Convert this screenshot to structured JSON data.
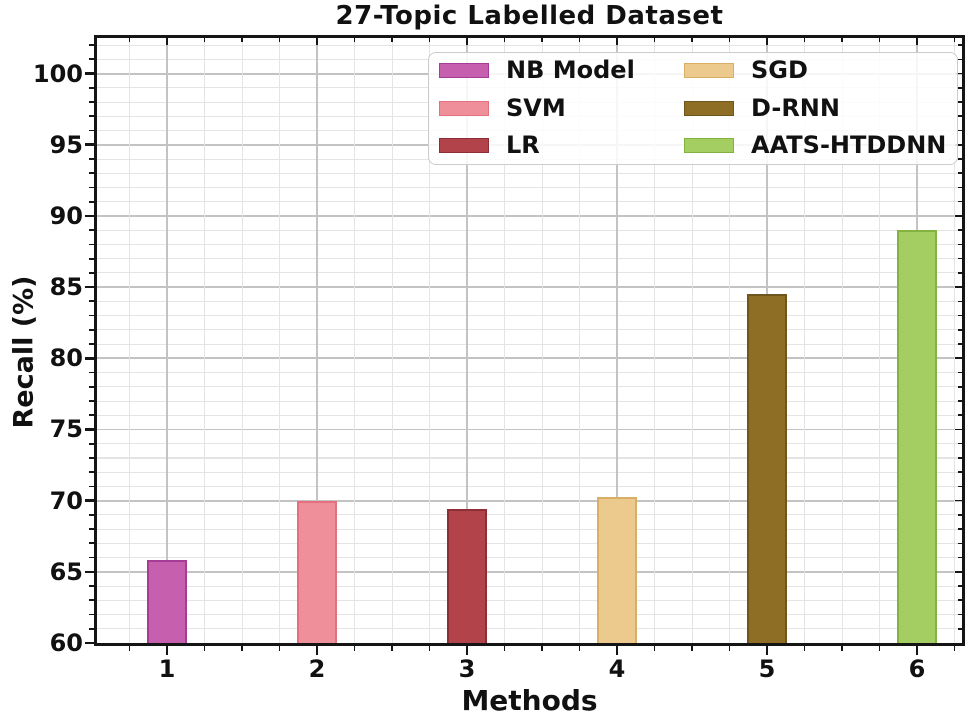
{
  "figure": {
    "title": "27-Topic Labelled Dataset",
    "xlabel": "Methods",
    "ylabel": "Recall (%)"
  },
  "chart_data": {
    "type": "bar",
    "title": "27-Topic Labelled Dataset",
    "xlabel": "Methods",
    "ylabel": "Recall (%)",
    "categories": [
      "1",
      "2",
      "3",
      "4",
      "5",
      "6"
    ],
    "series": [
      {
        "name": "NB Model",
        "x": 1,
        "value": 65.8,
        "color": "#c55fae",
        "edge": "#a53d97"
      },
      {
        "name": "SVM",
        "x": 2,
        "value": 70.0,
        "color": "#ee8f99",
        "edge": "#e2707e"
      },
      {
        "name": "LR",
        "x": 3,
        "value": 69.4,
        "color": "#b2434b",
        "edge": "#8e2f38"
      },
      {
        "name": "SGD",
        "x": 4,
        "value": 70.25,
        "color": "#ecca8e",
        "edge": "#d9ae66"
      },
      {
        "name": "D-RNN",
        "x": 5,
        "value": 84.5,
        "color": "#8d6e24",
        "edge": "#6e561c"
      },
      {
        "name": "AATS-HTDDNN",
        "x": 6,
        "value": 89.0,
        "color": "#a4ce62",
        "edge": "#84b241"
      }
    ],
    "xlim": [
      0.533,
      6.3
    ],
    "ylim": [
      60,
      102.5
    ],
    "y_major_ticks": [
      60,
      65,
      70,
      75,
      80,
      85,
      90,
      95,
      100
    ],
    "y_minor_step": 1,
    "x_major_ticks": [
      1,
      2,
      3,
      4,
      5,
      6
    ],
    "x_minor_step": 0.25,
    "bar_width": 0.27,
    "grid": true,
    "legend_position": "upper right",
    "legend_columns": [
      [
        "NB Model",
        "SVM",
        "LR"
      ],
      [
        "SGD",
        "D-RNN",
        "AATS-HTDDNN"
      ]
    ]
  }
}
